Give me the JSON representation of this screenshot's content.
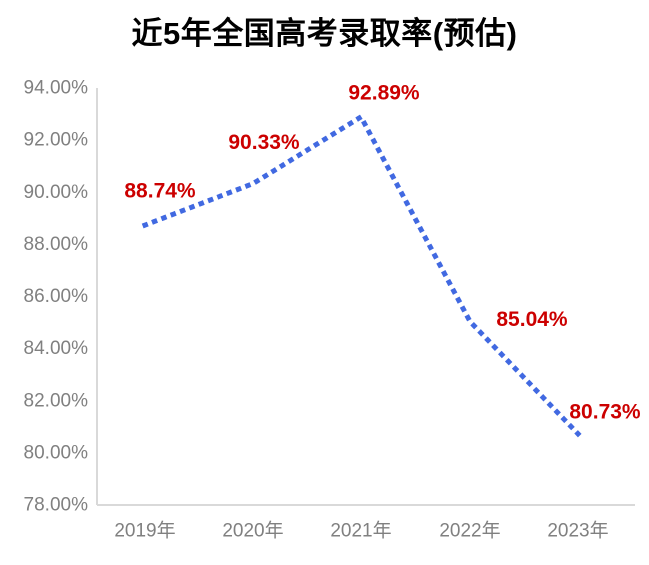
{
  "title": "近5年全国高考录取率(预估)",
  "colors": {
    "line": "#4169e1",
    "data_label": "#cc0000",
    "axis_text": "#808080",
    "axis_line": "#d9d9d9",
    "title_text": "#000000",
    "background": "#ffffff"
  },
  "chart_data": {
    "type": "line",
    "line_style": "dotted",
    "title": "近5年全国高考录取率(预估)",
    "categories": [
      "2019年",
      "2020年",
      "2021年",
      "2022年",
      "2023年"
    ],
    "values": [
      88.74,
      90.33,
      92.89,
      85.04,
      80.73
    ],
    "data_labels": [
      "88.74%",
      "90.33%",
      "92.89%",
      "85.04%",
      "80.73%"
    ],
    "yticks": [
      "94.00%",
      "92.00%",
      "90.00%",
      "88.00%",
      "86.00%",
      "84.00%",
      "82.00%",
      "80.00%",
      "78.00%"
    ],
    "ytick_values": [
      94,
      92,
      90,
      88,
      86,
      84,
      82,
      80,
      78
    ],
    "ylim": [
      78,
      94
    ],
    "ytick_step": 2,
    "xlabel": "",
    "ylabel": "",
    "grid": false,
    "legend": false
  }
}
